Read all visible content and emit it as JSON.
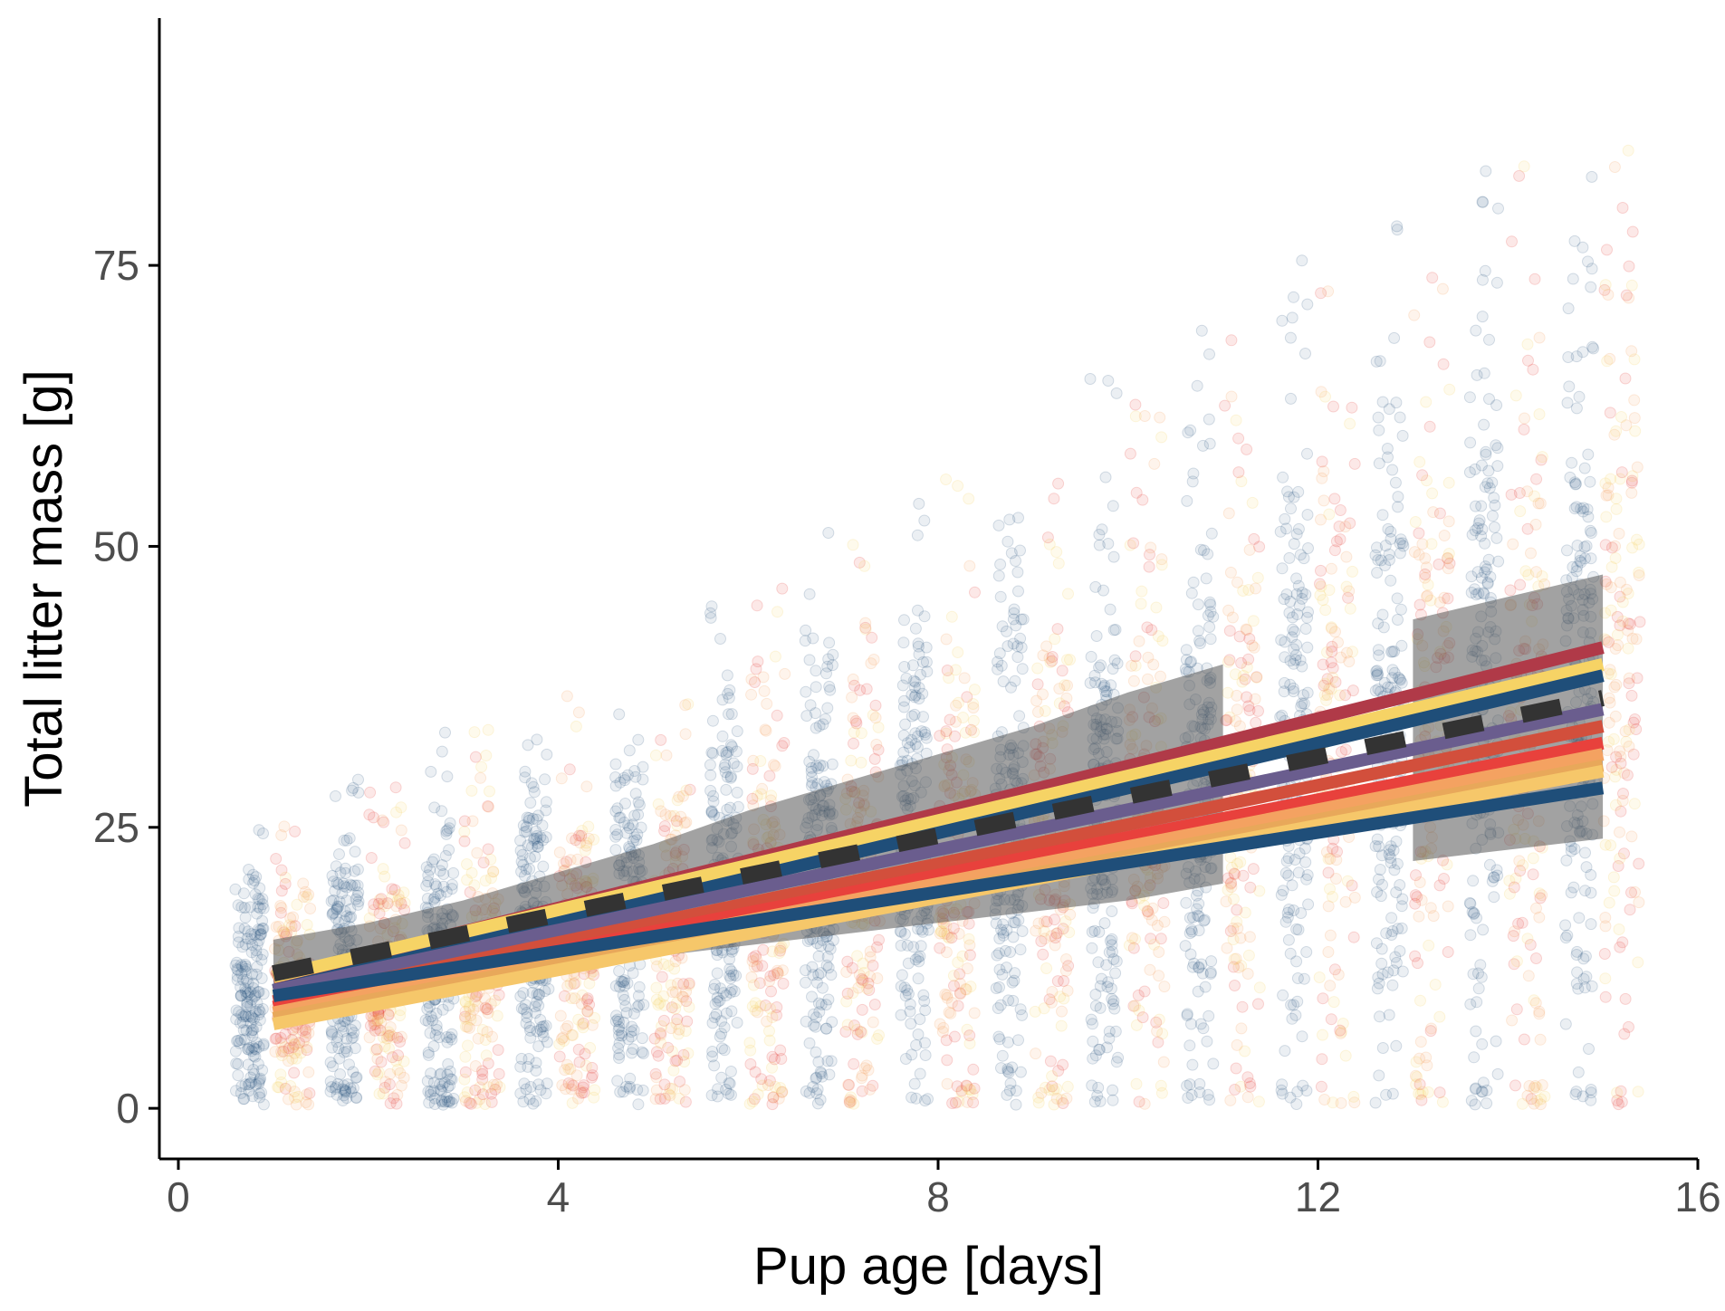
{
  "chart_data": {
    "type": "scatter",
    "title": "",
    "xlabel": "Pup age [days]",
    "ylabel": "Total litter mass [g]",
    "xlim": [
      -0.2,
      16
    ],
    "ylim": [
      -4.5,
      97
    ],
    "x_ticks": [
      0,
      4,
      8,
      12,
      16
    ],
    "y_ticks": [
      0,
      25,
      50,
      75
    ],
    "x_tick_labels": [
      "0",
      "4",
      "8",
      "12",
      "16"
    ],
    "y_tick_labels": [
      "0",
      "25",
      "50",
      "75"
    ],
    "grid": false,
    "legend": "none",
    "days": [
      1,
      2,
      3,
      4,
      5,
      6,
      7,
      8,
      9,
      10,
      11,
      12,
      13,
      14,
      15
    ],
    "point_clouds": {
      "description_free": true,
      "blue": {
        "color": "#1f4e79",
        "mean": [
          10.5,
          11.5,
          13,
          15,
          17,
          19,
          21,
          23,
          25,
          27,
          29.5,
          32,
          34,
          36.5,
          39
        ],
        "max": [
          26,
          30,
          34,
          38,
          42,
          47,
          52,
          56,
          61,
          65,
          70,
          76,
          81,
          86,
          91
        ]
      },
      "warm": {
        "colors": [
          "#e8413c",
          "#f4a261",
          "#f6d365"
        ],
        "mean": [
          10,
          11,
          12.5,
          14,
          16,
          18,
          20,
          22,
          24,
          26,
          28,
          30.5,
          32.5,
          34.5,
          37
        ],
        "max": [
          26,
          29,
          34,
          38,
          42,
          47,
          51,
          56,
          60,
          64,
          69,
          74,
          79,
          85,
          92
        ]
      }
    },
    "ribbons": [
      {
        "color": "#555555",
        "x": [
          1,
          2,
          3,
          4,
          5,
          6,
          7,
          8,
          9,
          10,
          11
        ],
        "ymin": [
          10.5,
          11,
          11.5,
          12.5,
          13.5,
          14.5,
          15.5,
          16.5,
          17.5,
          18.5,
          20
        ],
        "ymax": [
          15,
          16.5,
          18.5,
          21,
          23.5,
          26.5,
          29,
          31.5,
          34,
          37,
          39.5
        ]
      },
      {
        "color": "#555555",
        "x": [
          13,
          14,
          15
        ],
        "ymin": [
          22,
          23,
          24
        ],
        "ymax": [
          43.5,
          45.5,
          47.5
        ]
      }
    ],
    "series": [
      {
        "color": "#b03a48",
        "x": [
          1,
          15
        ],
        "y": [
          11.5,
          41
        ]
      },
      {
        "color": "#f6d365",
        "x": [
          1,
          15
        ],
        "y": [
          11.7,
          39.5
        ]
      },
      {
        "color": "#1f4e79",
        "x": [
          1,
          15
        ],
        "y": [
          10.5,
          38.5
        ]
      },
      {
        "color": "#6a5d8e",
        "x": [
          1,
          15
        ],
        "y": [
          10.5,
          35.5
        ]
      },
      {
        "color": "#d24f3c",
        "x": [
          1,
          15
        ],
        "y": [
          9.5,
          34
        ]
      },
      {
        "color": "#e8413c",
        "x": [
          1,
          15
        ],
        "y": [
          9,
          32.5
        ]
      },
      {
        "color": "#f4a261",
        "x": [
          1,
          15
        ],
        "y": [
          8.5,
          31.5
        ]
      },
      {
        "color": "#e8a85a",
        "x": [
          1,
          15
        ],
        "y": [
          8,
          30.5
        ]
      },
      {
        "color": "#f6c76a",
        "x": [
          1,
          15
        ],
        "y": [
          7.5,
          30
        ]
      },
      {
        "color": "#1f4e79",
        "x": [
          1,
          15
        ],
        "y": [
          10,
          28.5
        ]
      }
    ],
    "overall_fit": {
      "style": "dashed",
      "color": "#333333",
      "x": [
        1,
        15
      ],
      "y": [
        12,
        36.5
      ]
    }
  }
}
